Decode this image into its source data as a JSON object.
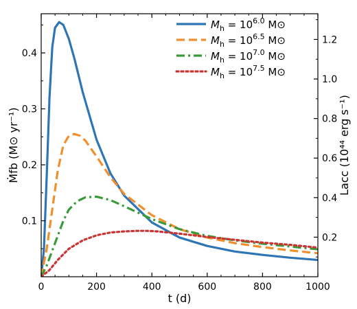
{
  "chart_data": {
    "type": "line",
    "title": "",
    "xlabel": "t (d)",
    "ylabel": "Ṁfb (M⊙ yr⁻¹)",
    "ylabel_right": "Lacc (10⁴⁴ erg s⁻¹)",
    "xlim": [
      0,
      1000
    ],
    "ylim": [
      0,
      0.47
    ],
    "ylim_right": [
      0,
      1.33
    ],
    "grid": false,
    "legend_position": "top-right",
    "x_ticks": [
      0,
      200,
      400,
      600,
      800,
      1000
    ],
    "x_tick_labels": [
      "0",
      "200",
      "400",
      "600",
      "800",
      "1000"
    ],
    "y_ticks": [
      0.1,
      0.2,
      0.3,
      0.4
    ],
    "y_tick_labels": [
      "0.1",
      "0.2",
      "0.3",
      "0.4"
    ],
    "y_ticks_right": [
      0.2,
      0.4,
      0.6,
      0.8,
      1.0,
      1.2
    ],
    "y_tick_labels_right": [
      "0.2",
      "0.4",
      "0.6",
      "0.8",
      "1.0",
      "1.2"
    ],
    "series": [
      {
        "name": "Mh = 10^6.0 M⊙",
        "legend_base": "10",
        "legend_exp": "6.0",
        "color": "#2e75b6",
        "style": "solid",
        "x": [
          0,
          10,
          20,
          30,
          40,
          50,
          65,
          80,
          100,
          120,
          150,
          200,
          250,
          300,
          400,
          500,
          600,
          700,
          800,
          900,
          1000
        ],
        "y": [
          0.0,
          0.05,
          0.18,
          0.32,
          0.41,
          0.445,
          0.455,
          0.45,
          0.425,
          0.39,
          0.33,
          0.245,
          0.185,
          0.145,
          0.097,
          0.07,
          0.055,
          0.045,
          0.039,
          0.034,
          0.03
        ]
      },
      {
        "name": "Mh = 10^6.5 M⊙",
        "legend_base": "10",
        "legend_exp": "6.5",
        "color": "#f28e2b",
        "style": "dashed",
        "x": [
          0,
          20,
          40,
          60,
          80,
          100,
          120,
          140,
          160,
          200,
          250,
          300,
          400,
          500,
          600,
          700,
          800,
          900,
          1000
        ],
        "y": [
          0.0,
          0.05,
          0.12,
          0.19,
          0.235,
          0.252,
          0.255,
          0.252,
          0.243,
          0.215,
          0.178,
          0.148,
          0.11,
          0.085,
          0.07,
          0.06,
          0.053,
          0.047,
          0.042
        ]
      },
      {
        "name": "Mh = 10^7.0 M⊙",
        "legend_base": "10",
        "legend_exp": "7.0",
        "color": "#3a9a3a",
        "style": "dashdot",
        "x": [
          0,
          20,
          50,
          80,
          100,
          130,
          160,
          200,
          250,
          300,
          400,
          500,
          600,
          700,
          800,
          900,
          1000
        ],
        "y": [
          0.0,
          0.02,
          0.06,
          0.1,
          0.12,
          0.135,
          0.142,
          0.143,
          0.137,
          0.126,
          0.103,
          0.085,
          0.073,
          0.065,
          0.059,
          0.054,
          0.049
        ]
      },
      {
        "name": "Mh = 10^7.5 M⊙",
        "legend_base": "10",
        "legend_exp": "7.5",
        "color": "#cc3333",
        "style": "dotted",
        "x": [
          0,
          30,
          60,
          100,
          150,
          200,
          250,
          300,
          350,
          380,
          420,
          500,
          600,
          700,
          800,
          900,
          1000
        ],
        "y": [
          0.0,
          0.012,
          0.03,
          0.05,
          0.065,
          0.074,
          0.079,
          0.081,
          0.082,
          0.082,
          0.081,
          0.077,
          0.071,
          0.066,
          0.061,
          0.057,
          0.052
        ]
      }
    ]
  }
}
